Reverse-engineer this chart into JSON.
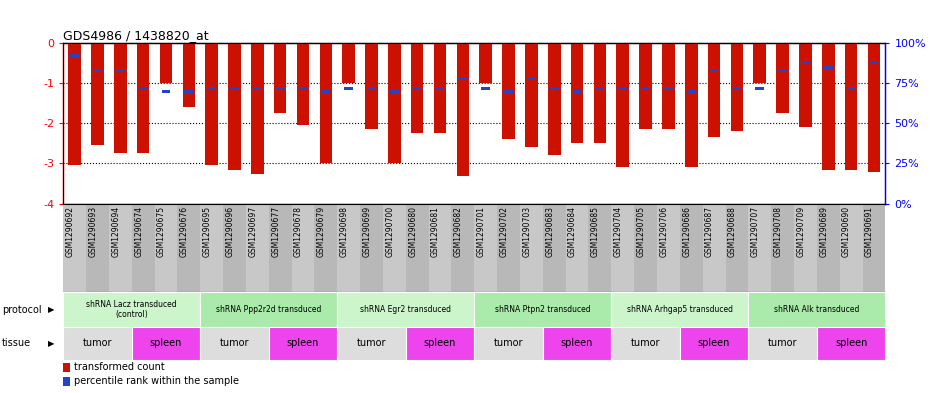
{
  "title": "GDS4986 / 1438820_at",
  "samples": [
    "GSM1290692",
    "GSM1290693",
    "GSM1290694",
    "GSM1290674",
    "GSM1290675",
    "GSM1290676",
    "GSM1290695",
    "GSM1290696",
    "GSM1290697",
    "GSM1290677",
    "GSM1290678",
    "GSM1290679",
    "GSM1290698",
    "GSM1290699",
    "GSM1290700",
    "GSM1290680",
    "GSM1290681",
    "GSM1290682",
    "GSM1290701",
    "GSM1290702",
    "GSM1290703",
    "GSM1290683",
    "GSM1290684",
    "GSM1290685",
    "GSM1290704",
    "GSM1290705",
    "GSM1290706",
    "GSM1290686",
    "GSM1290687",
    "GSM1290688",
    "GSM1290707",
    "GSM1290708",
    "GSM1290709",
    "GSM1290689",
    "GSM1290690",
    "GSM1290691"
  ],
  "transformed_count": [
    -3.05,
    -2.55,
    -2.75,
    -2.75,
    -1.0,
    -1.6,
    -3.05,
    -3.15,
    -3.25,
    -1.75,
    -2.05,
    -3.0,
    -1.0,
    -2.15,
    -3.0,
    -2.25,
    -2.25,
    -3.3,
    -1.0,
    -2.4,
    -2.6,
    -2.8,
    -2.5,
    -2.5,
    -3.1,
    -2.15,
    -2.15,
    -3.1,
    -2.35,
    -2.2,
    -1.0,
    -1.75,
    -2.1,
    -3.15,
    -3.15,
    -3.2
  ],
  "percentile_rank": [
    8,
    17,
    17,
    28,
    30,
    30,
    28,
    28,
    28,
    28,
    28,
    30,
    28,
    28,
    30,
    28,
    28,
    22,
    28,
    30,
    22,
    28,
    30,
    28,
    28,
    28,
    28,
    30,
    17,
    28,
    28,
    17,
    12,
    15,
    28,
    12
  ],
  "ylim_left": [
    -4.0,
    0.0
  ],
  "ylim_right": [
    0,
    100
  ],
  "yticks_left": [
    0,
    -1,
    -2,
    -3,
    -4
  ],
  "yticks_right": [
    0,
    25,
    50,
    75,
    100
  ],
  "protocols": [
    {
      "label": "shRNA Lacz transduced\n(control)",
      "start": 0,
      "end": 6,
      "color": "#ccf5cc"
    },
    {
      "label": "shRNA Ppp2r2d transduced",
      "start": 6,
      "end": 12,
      "color": "#aaeaaa"
    },
    {
      "label": "shRNA Egr2 transduced",
      "start": 12,
      "end": 18,
      "color": "#ccf5cc"
    },
    {
      "label": "shRNA Ptpn2 transduced",
      "start": 18,
      "end": 24,
      "color": "#aaeaaa"
    },
    {
      "label": "shRNA Arhgap5 transduced",
      "start": 24,
      "end": 30,
      "color": "#ccf5cc"
    },
    {
      "label": "shRNA Alk transduced",
      "start": 30,
      "end": 36,
      "color": "#aaeaaa"
    }
  ],
  "tissues": [
    {
      "label": "tumor",
      "start": 0,
      "end": 3,
      "color": "#dddddd"
    },
    {
      "label": "spleen",
      "start": 3,
      "end": 6,
      "color": "#ee44ee"
    },
    {
      "label": "tumor",
      "start": 6,
      "end": 9,
      "color": "#dddddd"
    },
    {
      "label": "spleen",
      "start": 9,
      "end": 12,
      "color": "#ee44ee"
    },
    {
      "label": "tumor",
      "start": 12,
      "end": 15,
      "color": "#dddddd"
    },
    {
      "label": "spleen",
      "start": 15,
      "end": 18,
      "color": "#ee44ee"
    },
    {
      "label": "tumor",
      "start": 18,
      "end": 21,
      "color": "#dddddd"
    },
    {
      "label": "spleen",
      "start": 21,
      "end": 24,
      "color": "#ee44ee"
    },
    {
      "label": "tumor",
      "start": 24,
      "end": 27,
      "color": "#dddddd"
    },
    {
      "label": "spleen",
      "start": 27,
      "end": 30,
      "color": "#ee44ee"
    },
    {
      "label": "tumor",
      "start": 30,
      "end": 33,
      "color": "#dddddd"
    },
    {
      "label": "spleen",
      "start": 33,
      "end": 36,
      "color": "#ee44ee"
    }
  ],
  "bar_color": "#cc1100",
  "blue_color": "#2244cc",
  "label_bg": "#c8c8c8"
}
